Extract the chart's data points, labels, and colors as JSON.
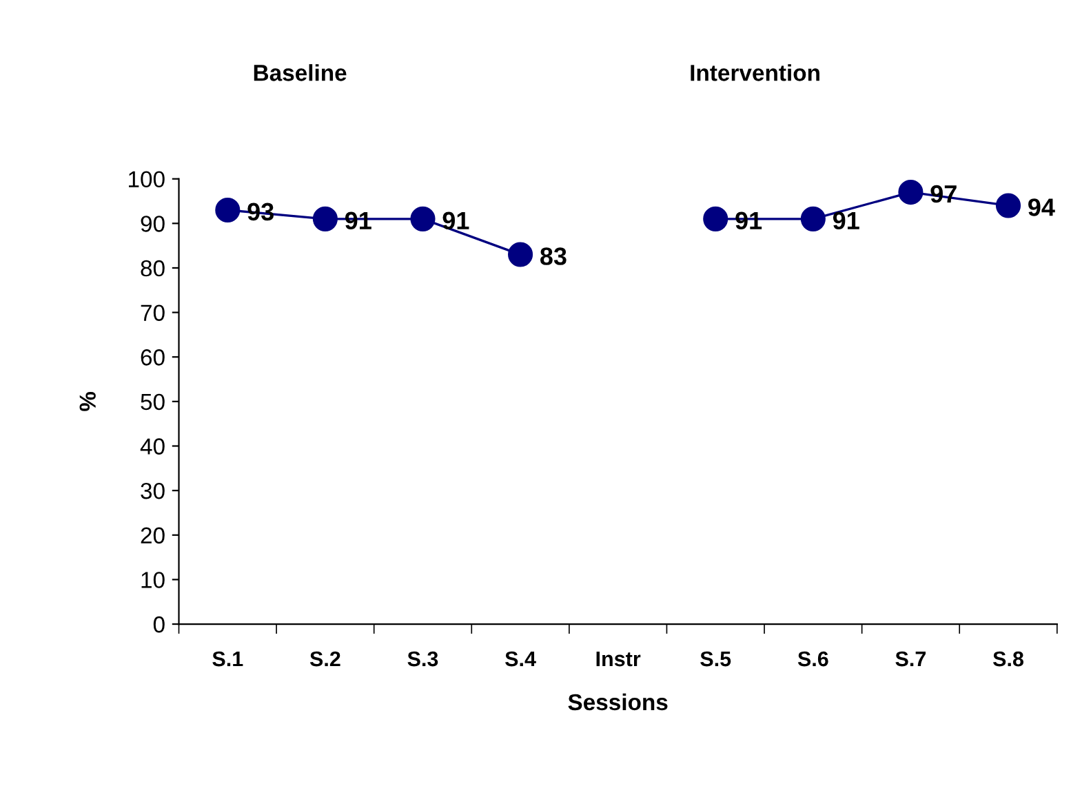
{
  "chart_data": {
    "type": "line",
    "categories": [
      "S.1",
      "S.2",
      "S.3",
      "S.4",
      "Instr",
      "S.5",
      "S.6",
      "S.7",
      "S.8"
    ],
    "values": [
      93,
      91,
      91,
      83,
      null,
      91,
      91,
      97,
      94
    ],
    "color": "#000080",
    "marker": "circle",
    "line_style": "solid",
    "xlabel": "Sessions",
    "ylabel": "%",
    "annotations": [
      "Baseline",
      "Intervention"
    ],
    "ylim": [
      0,
      100
    ],
    "yticks": [
      0,
      10,
      20,
      30,
      40,
      50,
      60,
      70,
      80,
      90,
      100
    ],
    "data_labels": true,
    "grid": false,
    "legend": false
  }
}
